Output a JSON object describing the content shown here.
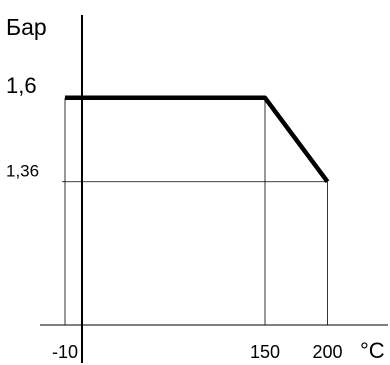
{
  "chart_data": {
    "type": "line",
    "title": "",
    "ylabel": "Бар",
    "xlabel": "°C",
    "x": [
      -10,
      150,
      200
    ],
    "values": [
      1.6,
      1.6,
      1.36
    ],
    "x_ticks": [
      "-10",
      "150",
      "200"
    ],
    "y_ticks": [
      "1,6",
      "1,36"
    ],
    "xlim": [
      -30,
      250
    ],
    "ylim": [
      0.95,
      1.88
    ],
    "grid": false,
    "legend": "none"
  }
}
